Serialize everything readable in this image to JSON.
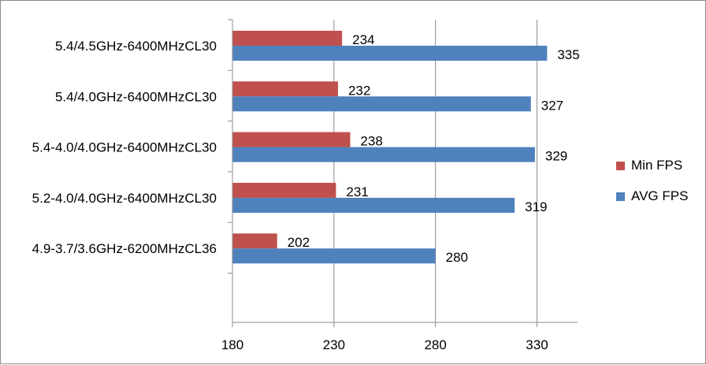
{
  "chart_data": {
    "type": "bar",
    "orientation": "horizontal",
    "title": "",
    "xlabel": "",
    "ylabel": "",
    "categories": [
      "5.4/4.5GHz-6400MHzCL30",
      "5.4/4.0GHz-6400MHzCL30",
      "5.4-4.0/4.0GHz-6400MHzCL30",
      "5.2-4.0/4.0GHz-6400MHzCL30",
      "4.9-3.7/3.6GHz-6200MHzCL36"
    ],
    "series": [
      {
        "name": "Min FPS",
        "color": "#c0504d",
        "values": [
          234,
          232,
          238,
          231,
          202
        ]
      },
      {
        "name": "AVG FPS",
        "color": "#4f81bd",
        "values": [
          335,
          327,
          329,
          319,
          280
        ]
      }
    ],
    "xlim": [
      180,
      350
    ],
    "xticks": [
      "180",
      "230",
      "280",
      "330"
    ],
    "grid": "vertical",
    "legend_position": "right"
  }
}
